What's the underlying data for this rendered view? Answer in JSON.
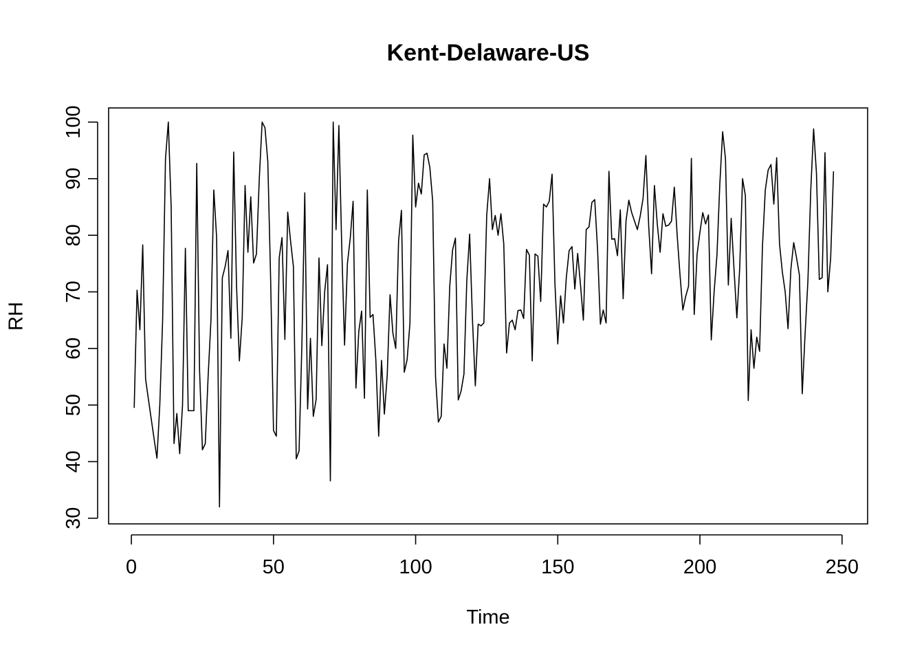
{
  "chart_data": {
    "type": "line",
    "title": "Kent-Delaware-US",
    "xlabel": "Time",
    "ylabel": "RH",
    "xlim": [
      -8,
      259
    ],
    "ylim": [
      29,
      102.5
    ],
    "x_ticks": [
      0,
      50,
      100,
      150,
      200,
      250
    ],
    "y_ticks": [
      30,
      40,
      50,
      60,
      70,
      80,
      90,
      100
    ],
    "grid": false,
    "line_color": "#000000",
    "series": [
      {
        "x_start": 1,
        "values": [
          49.5,
          70.3,
          63.3,
          78.3,
          54.6,
          51,
          47.5,
          44,
          40.6,
          50,
          65,
          93.5,
          100,
          85,
          43.2,
          48.5,
          41.4,
          50,
          77.7,
          49,
          49,
          49,
          92.7,
          56,
          42.1,
          43.2,
          55,
          65,
          88,
          79.5,
          32,
          72.5,
          74.5,
          77.3,
          61.8,
          94.7,
          71,
          57.8,
          65.5,
          88.8,
          77,
          86.8,
          75.1,
          76.7,
          90,
          100,
          99,
          93,
          72,
          45.5,
          44.5,
          76,
          79.6,
          61.6,
          84.1,
          79,
          74.5,
          40.5,
          41.9,
          61,
          87.5,
          49.3,
          61.8,
          48,
          51,
          76,
          60.5,
          70,
          74.8,
          36.6,
          100,
          81,
          99.4,
          78,
          60.6,
          75,
          79.5,
          86,
          53,
          63,
          66.6,
          51.2,
          88,
          65.5,
          66,
          58,
          44.5,
          57.9,
          48.4,
          55.2,
          69.5,
          62.7,
          60,
          79,
          84.4,
          55.8,
          58,
          64.5,
          97.7,
          85,
          89.2,
          87.3,
          94.2,
          94.5,
          92,
          86,
          55,
          47,
          48,
          60.8,
          56.5,
          71,
          77.4,
          79.5,
          50.9,
          52.5,
          55.5,
          72,
          80.2,
          65,
          53.4,
          64.3,
          64,
          64.5,
          83.5,
          90,
          81,
          83.5,
          80,
          83.8,
          78.5,
          59.2,
          64.5,
          65,
          63.3,
          66.7,
          66.8,
          65.3,
          77.5,
          76.5,
          57.8,
          76.7,
          76.3,
          68.3,
          85.5,
          85,
          86,
          90.8,
          71.5,
          60.8,
          69.3,
          64.5,
          72.5,
          77.3,
          78,
          70.5,
          76.8,
          71.2,
          65,
          81,
          81.5,
          85.8,
          86.3,
          77.5,
          64.3,
          66.8,
          64.5,
          91.3,
          79.3,
          79.4,
          76.4,
          84.5,
          68.8,
          82.5,
          86.2,
          84,
          82.5,
          81,
          83.4,
          86.5,
          94.1,
          81.5,
          73.2,
          88.8,
          82,
          77,
          83.8,
          81.6,
          81.8,
          82.5,
          88.5,
          80,
          73,
          66.8,
          69.2,
          71,
          93.6,
          66,
          76.6,
          80.5,
          84,
          82,
          83.6,
          61.5,
          70,
          76.5,
          89,
          98.3,
          93.5,
          71.2,
          83,
          74,
          65.4,
          74.2,
          90,
          87,
          50.8,
          63.3,
          56.5,
          62,
          59.5,
          78,
          88,
          91.5,
          92.5,
          85.5,
          93.7,
          78.5,
          73.5,
          70,
          63.5,
          74,
          78.7,
          76,
          73,
          52,
          62.5,
          72,
          88,
          98.8,
          91,
          72.2,
          72.5,
          94.6,
          70,
          76,
          91.3
        ]
      }
    ]
  }
}
